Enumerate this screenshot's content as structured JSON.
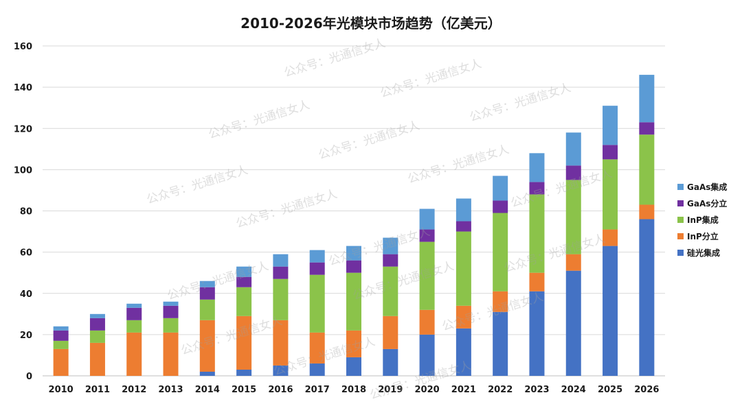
{
  "chart_data": {
    "type": "bar",
    "stacked": true,
    "title": "2010-2026年光模块市场趋势（亿美元）",
    "categories": [
      "2010",
      "2011",
      "2012",
      "2013",
      "2014",
      "2015",
      "2016",
      "2017",
      "2018",
      "2019",
      "2020",
      "2021",
      "2022",
      "2023",
      "2024",
      "2025",
      "2026"
    ],
    "ylim": [
      0,
      160
    ],
    "yticks": [
      "0",
      "20",
      "40",
      "60",
      "80",
      "100",
      "120",
      "140",
      "160"
    ],
    "grid": true,
    "legend_position": "right",
    "series": [
      {
        "name": "硅光集成",
        "color": "#4472C4",
        "values": [
          0,
          0,
          0,
          0,
          2,
          3,
          5,
          6,
          9,
          13,
          20,
          23,
          31,
          41,
          51,
          63,
          76
        ]
      },
      {
        "name": "InP分立",
        "color": "#ED7D31",
        "values": [
          13,
          16,
          21,
          21,
          25,
          26,
          22,
          15,
          13,
          16,
          12,
          11,
          10,
          9,
          8,
          8,
          7
        ]
      },
      {
        "name": "InP集成",
        "color": "#8BC34A",
        "values": [
          4,
          6,
          6,
          7,
          10,
          14,
          20,
          28,
          28,
          24,
          33,
          36,
          38,
          38,
          36,
          34,
          34
        ]
      },
      {
        "name": "GaAs分立",
        "color": "#7030A0",
        "values": [
          5,
          6,
          6,
          6,
          6,
          5,
          6,
          6,
          6,
          6,
          6,
          5,
          6,
          6,
          7,
          7,
          6
        ]
      },
      {
        "name": "GaAs集成",
        "color": "#5B9BD5",
        "values": [
          2,
          2,
          2,
          2,
          3,
          5,
          6,
          6,
          7,
          8,
          10,
          11,
          12,
          14,
          16,
          19,
          23
        ]
      }
    ]
  },
  "legend_order": [
    "GaAs集成",
    "GaAs分立",
    "InP集成",
    "InP分立",
    "硅光集成"
  ],
  "watermark": "公众号：光通信女人"
}
